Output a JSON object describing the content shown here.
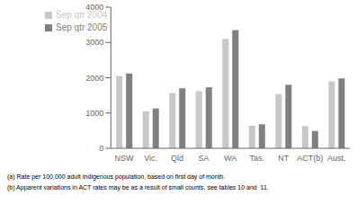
{
  "chart_data": {
    "type": "bar",
    "categories": [
      "NSW",
      "Vic.",
      "Qld",
      "SA",
      "WA",
      "Tas.",
      "NT",
      "ACT(b)",
      "Aust."
    ],
    "series": [
      {
        "name": "Sep qtr 2004",
        "color": "#c8c8c8",
        "values": [
          2050,
          1050,
          1570,
          1620,
          3100,
          640,
          1540,
          630,
          1900
        ]
      },
      {
        "name": "Sep qtr 2005",
        "color": "#808080",
        "values": [
          2120,
          1130,
          1700,
          1730,
          3350,
          680,
          1800,
          490,
          1980
        ]
      }
    ],
    "ylim": [
      0,
      4000
    ],
    "yticks": [
      0,
      1000,
      2000,
      3000,
      4000
    ],
    "grid": false,
    "legend": "upper left",
    "annotations": [
      "(a) Rate per 100,000 adult Indigenous population, based on first day of month.",
      "(b) Apparent variations in ACT rates may be as a result of small counts, see tables 10 and  11."
    ]
  }
}
